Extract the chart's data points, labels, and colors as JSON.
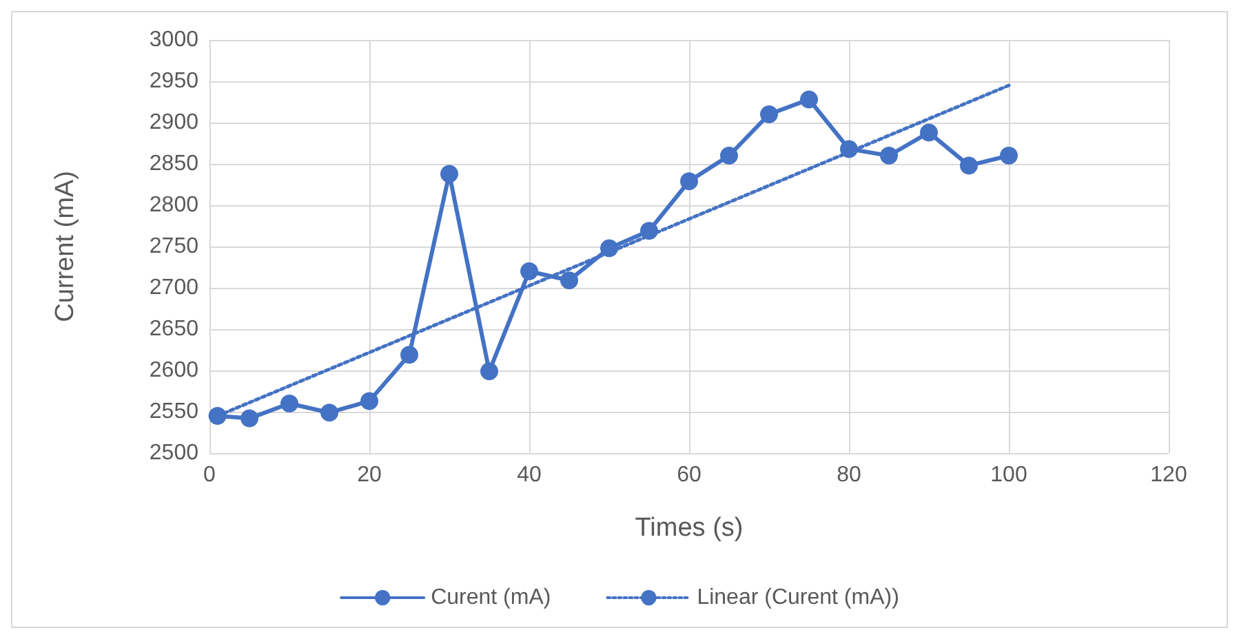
{
  "chart_data": {
    "type": "line",
    "xlabel": "Times (s)",
    "ylabel": "Current (mA)",
    "x": [
      1,
      5,
      10,
      15,
      20,
      25,
      30,
      35,
      40,
      45,
      50,
      55,
      60,
      65,
      70,
      75,
      80,
      85,
      90,
      95,
      100
    ],
    "series": [
      {
        "name": "Curent (mA)",
        "color": "#4472c4",
        "marker": "circle",
        "line_style": "solid",
        "values": [
          2545,
          2542,
          2560,
          2549,
          2563,
          2619,
          2838,
          2599,
          2720,
          2709,
          2748,
          2769,
          2829,
          2860,
          2910,
          2928,
          2868,
          2860,
          2888,
          2848,
          2860
        ]
      },
      {
        "name": "Linear (Curent (mA))",
        "color": "#4472c4",
        "marker": "none",
        "line_style": "dotted",
        "x": [
          1,
          100
        ],
        "values": [
          2545,
          2945
        ]
      }
    ],
    "xlim": [
      0,
      120
    ],
    "xticks": [
      0,
      20,
      40,
      60,
      80,
      100,
      120
    ],
    "ylim": [
      2500,
      3000
    ],
    "yticks": [
      2500,
      2550,
      2600,
      2650,
      2700,
      2750,
      2800,
      2850,
      2900,
      2950,
      3000
    ],
    "grid": true,
    "legend": "bottom"
  }
}
